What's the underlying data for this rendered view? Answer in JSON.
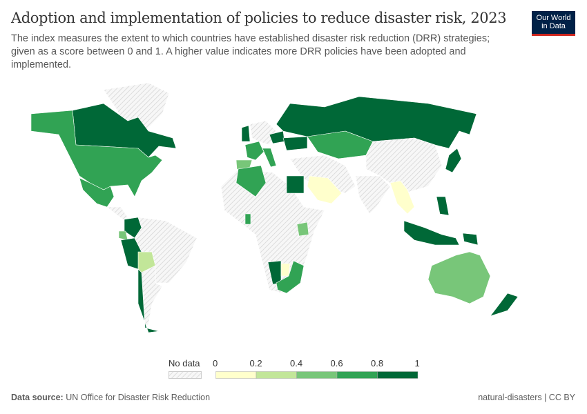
{
  "header": {
    "title": "Adoption and implementation of policies to reduce disaster risk, 2023",
    "subtitle": "The index measures the extent to which countries have established disaster risk reduction (DRR) strategies; given as a score between 0 and 1. A higher value indicates more DRR policies have been adopted and implemented.",
    "logo_line1": "Our World",
    "logo_line2": "in Data"
  },
  "chart_data": {
    "type": "choropleth",
    "year": 2023,
    "legend": {
      "no_data_label": "No data",
      "ticks": [
        "0",
        "0.2",
        "0.4",
        "0.6",
        "0.8",
        "1"
      ],
      "bins": [
        {
          "range": [
            0,
            0.2
          ],
          "color": "#ffffcc"
        },
        {
          "range": [
            0.2,
            0.4
          ],
          "color": "#c2e699"
        },
        {
          "range": [
            0.4,
            0.6
          ],
          "color": "#78c679"
        },
        {
          "range": [
            0.6,
            0.8
          ],
          "color": "#31a354"
        },
        {
          "range": [
            0.8,
            1
          ],
          "color": "#006837"
        }
      ],
      "no_data_color": "#e6e6e6"
    },
    "countries": [
      {
        "name": "Canada",
        "value": 0.9
      },
      {
        "name": "United States",
        "value": 0.7
      },
      {
        "name": "Mexico",
        "value": 0.7
      },
      {
        "name": "Greenland",
        "value": null
      },
      {
        "name": "Colombia",
        "value": 0.9
      },
      {
        "name": "Ecuador",
        "value": 0.5
      },
      {
        "name": "Peru",
        "value": 0.9
      },
      {
        "name": "Bolivia",
        "value": 0.3
      },
      {
        "name": "Chile",
        "value": 0.9
      },
      {
        "name": "Brazil",
        "value": null
      },
      {
        "name": "Argentina",
        "value": null
      },
      {
        "name": "United Kingdom",
        "value": 0.9
      },
      {
        "name": "France",
        "value": 0.7
      },
      {
        "name": "Spain",
        "value": 0.5
      },
      {
        "name": "Italy",
        "value": 0.7
      },
      {
        "name": "Poland",
        "value": 0.9
      },
      {
        "name": "Ukraine",
        "value": 0.9
      },
      {
        "name": "Russia",
        "value": 0.9
      },
      {
        "name": "Kazakhstan",
        "value": 0.7
      },
      {
        "name": "China",
        "value": null
      },
      {
        "name": "Algeria",
        "value": 0.7
      },
      {
        "name": "Egypt",
        "value": 0.9
      },
      {
        "name": "Saudi Arabia",
        "value": 0.1
      },
      {
        "name": "India",
        "value": null
      },
      {
        "name": "Myanmar",
        "value": 0.1
      },
      {
        "name": "Japan",
        "value": 0.9
      },
      {
        "name": "Philippines",
        "value": 0.9
      },
      {
        "name": "Indonesia",
        "value": 0.9
      },
      {
        "name": "Papua New Guinea",
        "value": 0.9
      },
      {
        "name": "Australia",
        "value": 0.5
      },
      {
        "name": "New Zealand",
        "value": 0.9
      },
      {
        "name": "Namibia",
        "value": 0.9
      },
      {
        "name": "Botswana",
        "value": 0.1
      },
      {
        "name": "South Africa",
        "value": 0.7
      },
      {
        "name": "Ghana",
        "value": 0.7
      },
      {
        "name": "Kenya",
        "value": 0.5
      },
      {
        "name": "Africa (other)",
        "value": null
      }
    ]
  },
  "footer": {
    "source_label": "Data source:",
    "source": "UN Office for Disaster Risk Reduction",
    "right": "natural-disasters | CC BY"
  }
}
